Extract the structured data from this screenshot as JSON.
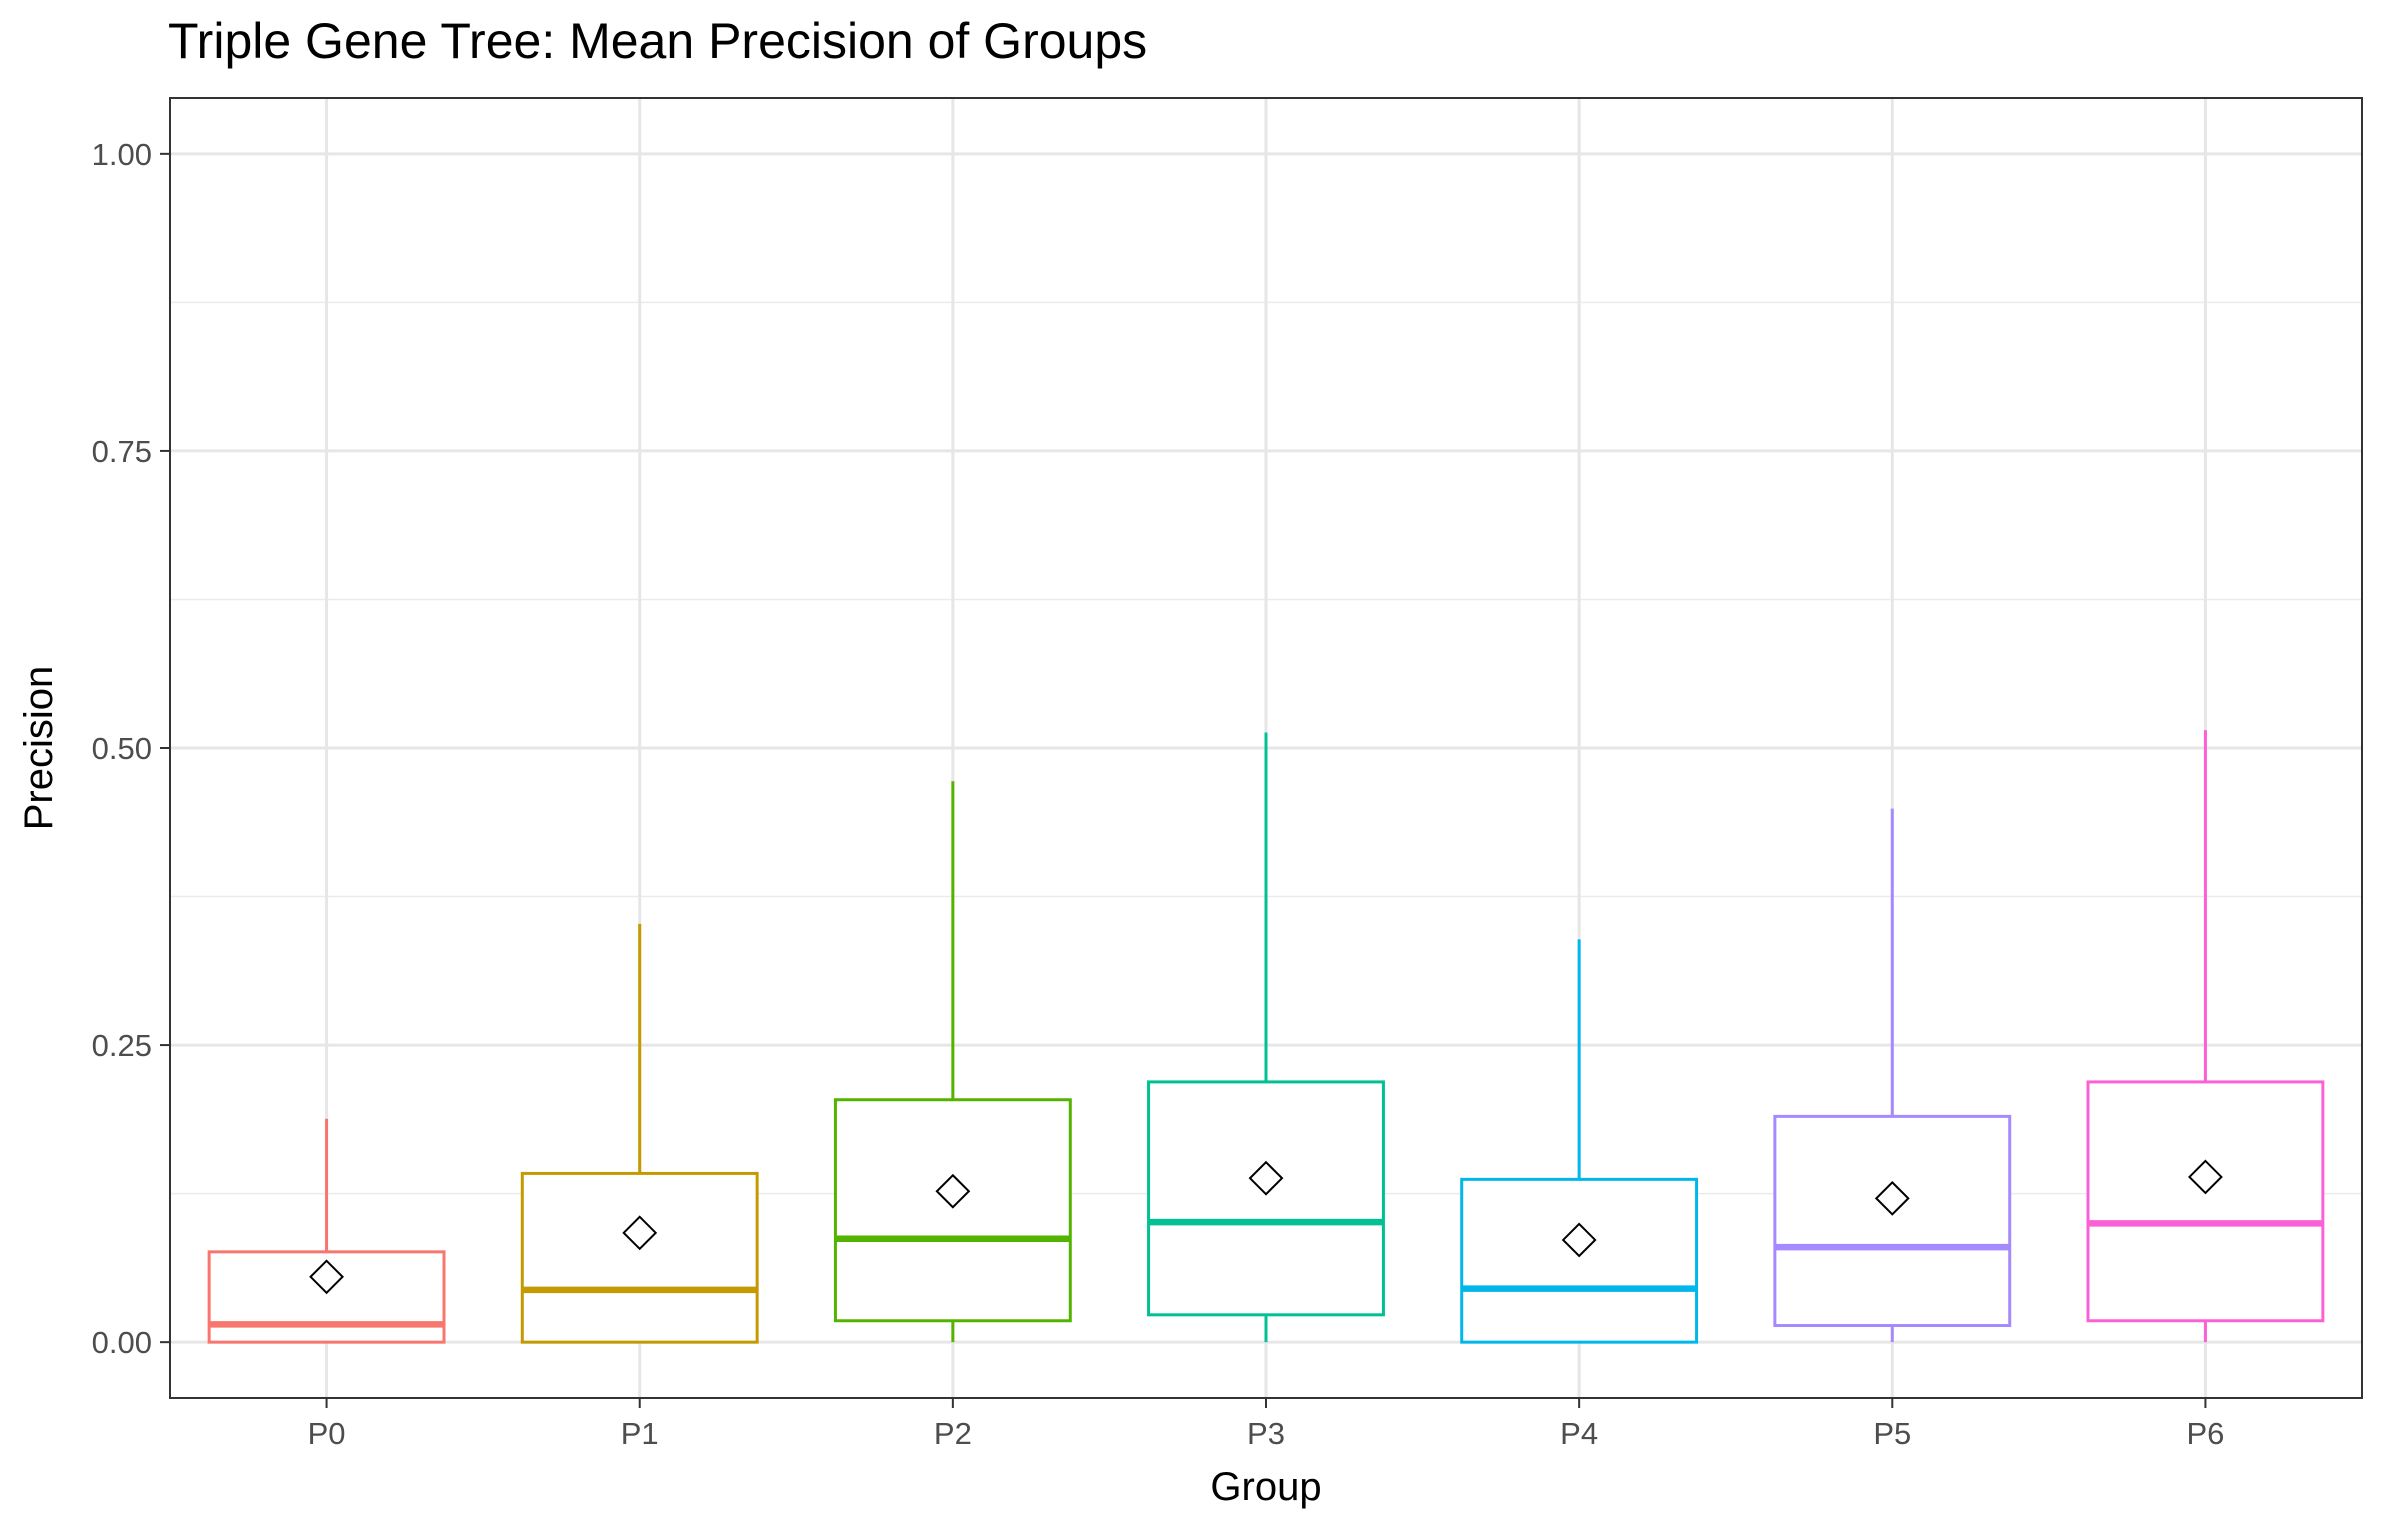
{
  "chart_data": {
    "type": "boxplot",
    "title": "Triple Gene Tree: Mean Precision of Groups",
    "xlabel": "Group",
    "ylabel": "Precision",
    "ylim": [
      -0.047,
      1.047
    ],
    "yticks": [
      0.0,
      0.25,
      0.5,
      0.75,
      1.0
    ],
    "ytick_labels": [
      "0.00",
      "0.25",
      "0.50",
      "0.75",
      "1.00"
    ],
    "grid": true,
    "legend": "none",
    "mean_marker": "diamond",
    "categories": [
      "P0",
      "P1",
      "P2",
      "P3",
      "P4",
      "P5",
      "P6"
    ],
    "boxes": [
      {
        "name": "P0",
        "color": "#F8766D",
        "whisker_low": 0.0,
        "q1": 0.0,
        "median": 0.015,
        "q3": 0.076,
        "whisker_high": 0.188,
        "mean": 0.055
      },
      {
        "name": "P1",
        "color": "#C49A00",
        "whisker_low": 0.0,
        "q1": 0.0,
        "median": 0.044,
        "q3": 0.142,
        "whisker_high": 0.352,
        "mean": 0.092
      },
      {
        "name": "P2",
        "color": "#53B400",
        "whisker_low": 0.0,
        "q1": 0.018,
        "median": 0.087,
        "q3": 0.204,
        "whisker_high": 0.472,
        "mean": 0.127
      },
      {
        "name": "P3",
        "color": "#00C094",
        "whisker_low": 0.0,
        "q1": 0.023,
        "median": 0.101,
        "q3": 0.219,
        "whisker_high": 0.513,
        "mean": 0.138
      },
      {
        "name": "P4",
        "color": "#00B6EB",
        "whisker_low": 0.0,
        "q1": 0.0,
        "median": 0.045,
        "q3": 0.137,
        "whisker_high": 0.339,
        "mean": 0.086
      },
      {
        "name": "P5",
        "color": "#A58AFF",
        "whisker_low": 0.0,
        "q1": 0.014,
        "median": 0.08,
        "q3": 0.19,
        "whisker_high": 0.449,
        "mean": 0.121
      },
      {
        "name": "P6",
        "color": "#FB61D7",
        "whisker_low": 0.0,
        "q1": 0.018,
        "median": 0.1,
        "q3": 0.219,
        "whisker_high": 0.515,
        "mean": 0.139
      }
    ]
  }
}
